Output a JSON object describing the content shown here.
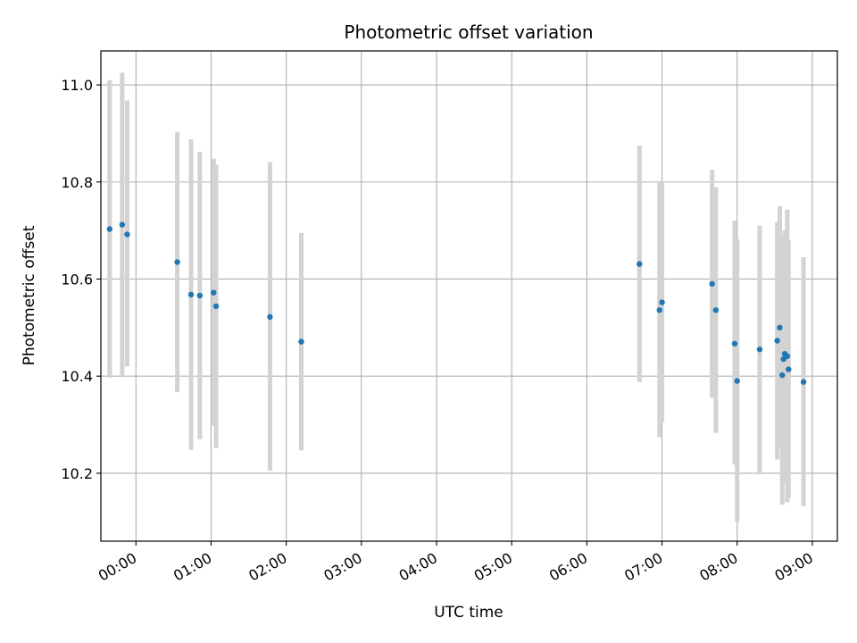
{
  "chart_data": {
    "type": "scatter",
    "title": "Photometric offset variation",
    "xlabel": "UTC time",
    "ylabel": "Photometric offset",
    "x_unit": "hours UTC",
    "xlim": [
      "23:32",
      "09:20"
    ],
    "ylim": [
      10.06,
      11.07
    ],
    "x_ticks": [
      "00:00",
      "01:00",
      "02:00",
      "03:00",
      "04:00",
      "05:00",
      "06:00",
      "07:00",
      "08:00",
      "09:00"
    ],
    "y_ticks": [
      "10.2",
      "10.4",
      "10.6",
      "10.8",
      "11.0"
    ],
    "grid": true,
    "legend": "none",
    "colors": {
      "point": "#1f77b4",
      "errorbar": "#d3d3d3",
      "grid": "#b0b0b0"
    },
    "series": [
      {
        "points": [
          {
            "x": "23:39",
            "y": 10.703,
            "ylo": 10.397,
            "yhi": 11.01
          },
          {
            "x": "23:49",
            "y": 10.712,
            "ylo": 10.4,
            "yhi": 11.025
          },
          {
            "x": "23:53",
            "y": 10.692,
            "ylo": 10.42,
            "yhi": 10.968
          },
          {
            "x": "00:33",
            "y": 10.635,
            "ylo": 10.367,
            "yhi": 10.903
          },
          {
            "x": "00:44",
            "y": 10.568,
            "ylo": 10.248,
            "yhi": 10.888
          },
          {
            "x": "00:51",
            "y": 10.566,
            "ylo": 10.27,
            "yhi": 10.862
          },
          {
            "x": "01:02",
            "y": 10.572,
            "ylo": 10.298,
            "yhi": 10.848
          },
          {
            "x": "01:04",
            "y": 10.544,
            "ylo": 10.252,
            "yhi": 10.836
          },
          {
            "x": "01:47",
            "y": 10.522,
            "ylo": 10.205,
            "yhi": 10.841
          },
          {
            "x": "02:12",
            "y": 10.471,
            "ylo": 10.247,
            "yhi": 10.695
          },
          {
            "x": "06:42",
            "y": 10.631,
            "ylo": 10.388,
            "yhi": 10.875
          },
          {
            "x": "06:58",
            "y": 10.536,
            "ylo": 10.274,
            "yhi": 10.798
          },
          {
            "x": "07:00",
            "y": 10.552,
            "ylo": 10.305,
            "yhi": 10.8
          },
          {
            "x": "07:40",
            "y": 10.59,
            "ylo": 10.355,
            "yhi": 10.825
          },
          {
            "x": "07:43",
            "y": 10.536,
            "ylo": 10.283,
            "yhi": 10.789
          },
          {
            "x": "07:58",
            "y": 10.467,
            "ylo": 10.218,
            "yhi": 10.72
          },
          {
            "x": "08:00",
            "y": 10.39,
            "ylo": 10.1,
            "yhi": 10.682
          },
          {
            "x": "08:18",
            "y": 10.455,
            "ylo": 10.2,
            "yhi": 10.71
          },
          {
            "x": "08:32",
            "y": 10.473,
            "ylo": 10.228,
            "yhi": 10.718
          },
          {
            "x": "08:34",
            "y": 10.5,
            "ylo": 10.25,
            "yhi": 10.75
          },
          {
            "x": "08:36",
            "y": 10.402,
            "ylo": 10.135,
            "yhi": 10.69
          },
          {
            "x": "08:37",
            "y": 10.435,
            "ylo": 10.18,
            "yhi": 10.69
          },
          {
            "x": "08:38",
            "y": 10.446,
            "ylo": 10.19,
            "yhi": 10.7
          },
          {
            "x": "08:40",
            "y": 10.441,
            "ylo": 10.14,
            "yhi": 10.743
          },
          {
            "x": "08:41",
            "y": 10.414,
            "ylo": 10.15,
            "yhi": 10.68
          },
          {
            "x": "08:53",
            "y": 10.388,
            "ylo": 10.132,
            "yhi": 10.645
          }
        ]
      }
    ]
  }
}
